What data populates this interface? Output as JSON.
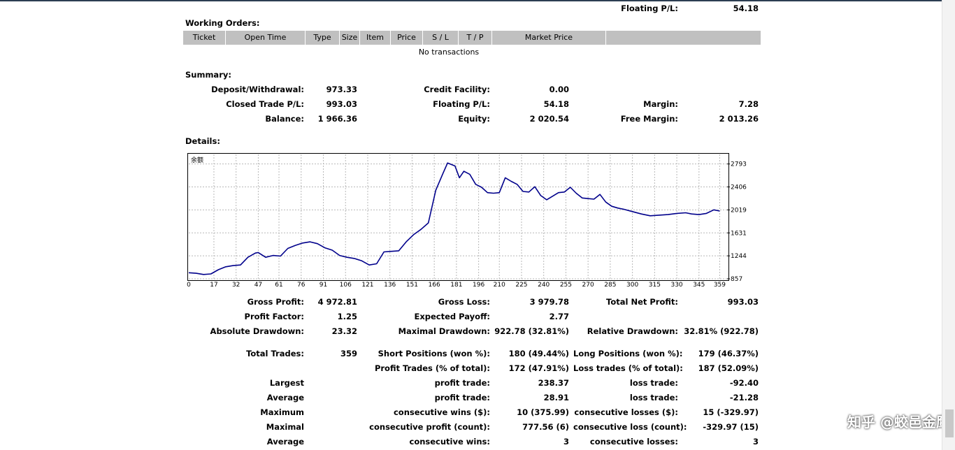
{
  "floating_top": {
    "label": "Floating P/L:",
    "value": "54.18"
  },
  "working_orders": {
    "title": "Working Orders:",
    "columns": [
      "Ticket",
      "Open Time",
      "Type",
      "Size",
      "Item",
      "Price",
      "S / L",
      "T / P",
      "Market Price",
      ""
    ],
    "empty_text": "No transactions"
  },
  "summary": {
    "title": "Summary:",
    "deposit_label": "Deposit/Withdrawal:",
    "deposit": "973.33",
    "credit_label": "Credit Facility:",
    "credit": "0.00",
    "closed_label": "Closed Trade P/L:",
    "closed": "993.03",
    "floating_label": "Floating P/L:",
    "floating": "54.18",
    "margin_label": "Margin:",
    "margin": "7.28",
    "balance_label": "Balance:",
    "balance": "1 966.36",
    "equity_label": "Equity:",
    "equity": "2 020.54",
    "free_margin_label": "Free Margin:",
    "free_margin": "2 013.26"
  },
  "details": {
    "title": "Details:"
  },
  "chart_data": {
    "type": "line",
    "title": "余额",
    "xlabel": "",
    "ylabel": "",
    "xlim": [
      0,
      364
    ],
    "ylim": [
      857,
      2954
    ],
    "x_ticks": [
      0,
      17,
      32,
      47,
      61,
      76,
      91,
      106,
      121,
      136,
      151,
      166,
      181,
      196,
      210,
      225,
      240,
      255,
      270,
      285,
      300,
      315,
      330,
      345,
      359
    ],
    "y_ticks": [
      857,
      1244,
      1631,
      2019,
      2406,
      2793
    ],
    "grid": true,
    "line_color": "#00008b",
    "series": [
      {
        "x": [
          0,
          5,
          10,
          15,
          20,
          25,
          30,
          35,
          40,
          45,
          47,
          52,
          57,
          62,
          67,
          72,
          77,
          82,
          87,
          92,
          97,
          102,
          107,
          112,
          117,
          122,
          127,
          132,
          137,
          142,
          147,
          152,
          157,
          162,
          167,
          172,
          175,
          180,
          183,
          186,
          190,
          194,
          198,
          202,
          206,
          210,
          214,
          218,
          222,
          226,
          230,
          234,
          238,
          242,
          246,
          250,
          254,
          258,
          262,
          266,
          270,
          274,
          278,
          282,
          286,
          290,
          294,
          300,
          306,
          312,
          318,
          324,
          330,
          336,
          340,
          345,
          350,
          355,
          359
        ],
        "y": [
          960,
          950,
          930,
          940,
          1010,
          1060,
          1080,
          1090,
          1220,
          1290,
          1300,
          1220,
          1250,
          1240,
          1370,
          1420,
          1460,
          1480,
          1450,
          1380,
          1340,
          1250,
          1220,
          1200,
          1160,
          1090,
          1110,
          1310,
          1320,
          1330,
          1480,
          1600,
          1690,
          1800,
          2350,
          2640,
          2810,
          2760,
          2560,
          2670,
          2620,
          2450,
          2400,
          2310,
          2300,
          2310,
          2560,
          2500,
          2450,
          2330,
          2320,
          2410,
          2260,
          2190,
          2250,
          2310,
          2320,
          2400,
          2300,
          2220,
          2210,
          2200,
          2280,
          2150,
          2080,
          2050,
          2030,
          1990,
          1950,
          1920,
          1930,
          1940,
          1960,
          1970,
          1950,
          1940,
          1960,
          2020,
          2000
        ]
      }
    ]
  },
  "stats": {
    "gross_profit_label": "Gross Profit:",
    "gross_profit": "4 972.81",
    "gross_loss_label": "Gross Loss:",
    "gross_loss": "3 979.78",
    "total_net_label": "Total Net Profit:",
    "total_net": "993.03",
    "profit_factor_label": "Profit Factor:",
    "profit_factor": "1.25",
    "expected_payoff_label": "Expected Payoff:",
    "expected_payoff": "2.77",
    "abs_dd_label": "Absolute Drawdown:",
    "abs_dd": "23.32",
    "max_dd_label": "Maximal Drawdown:",
    "max_dd": "922.78 (32.81%)",
    "rel_dd_label": "Relative Drawdown:",
    "rel_dd": "32.81% (922.78)",
    "total_trades_label": "Total Trades:",
    "total_trades": "359",
    "short_label": "Short Positions (won %):",
    "short": "180 (49.44%)",
    "long_label": "Long Positions (won %):",
    "long": "179 (46.37%)",
    "profit_trades_label": "Profit Trades (% of total):",
    "profit_trades": "172 (47.91%)",
    "loss_trades_label": "Loss trades (% of total):",
    "loss_trades": "187 (52.09%)",
    "largest_label": "Largest",
    "largest_profit_label": "profit trade:",
    "largest_profit": "238.37",
    "largest_loss_label": "loss trade:",
    "largest_loss": "-92.40",
    "average_label": "Average",
    "average_profit_label": "profit trade:",
    "average_profit": "28.91",
    "average_loss_label": "loss trade:",
    "average_loss": "-21.28",
    "maximum_label": "Maximum",
    "max_cons_wins_label": "consecutive wins ($):",
    "max_cons_wins": "10 (375.99)",
    "max_cons_losses_label": "consecutive losses ($):",
    "max_cons_losses": "15 (-329.97)",
    "maximal_label": "Maximal",
    "maximal_profit_label": "consecutive profit (count):",
    "maximal_profit": "777.56 (6)",
    "maximal_loss_label": "consecutive loss (count):",
    "maximal_loss": "-329.97 (15)",
    "average2_label": "Average",
    "avg_cons_wins_label": "consecutive wins:",
    "avg_cons_wins": "3",
    "avg_cons_losses_label": "consecutive losses:",
    "avg_cons_losses": "3"
  },
  "watermark": "知乎 @蛟邑金鹰"
}
